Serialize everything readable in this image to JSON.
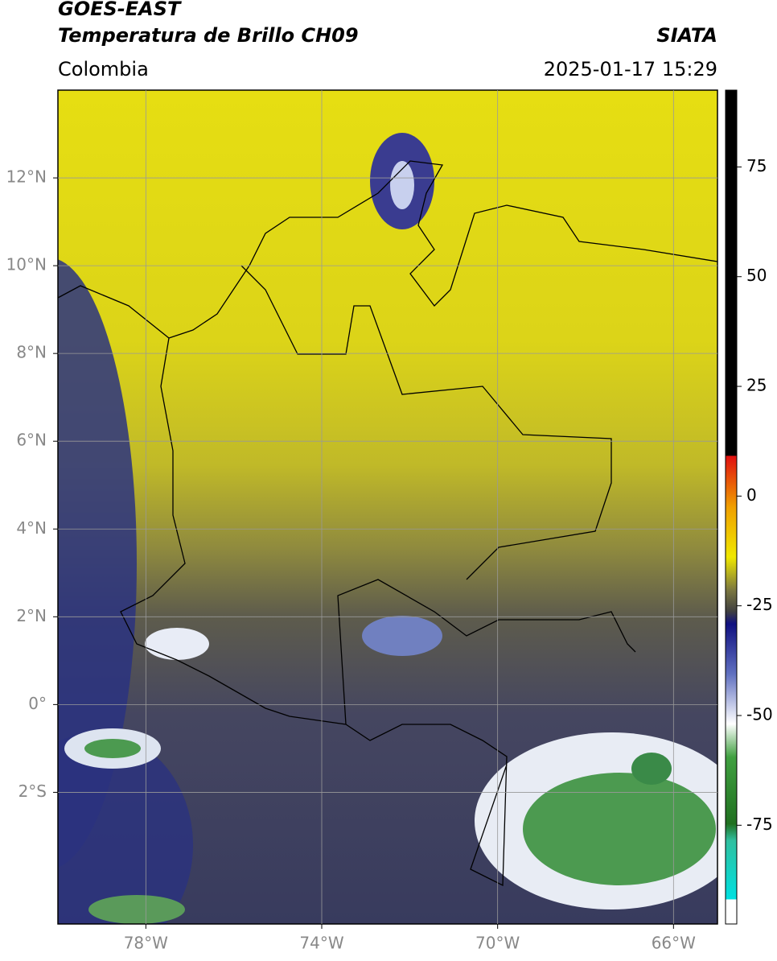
{
  "header": {
    "satellite": "GOES-EAST",
    "product": "Temperatura de Brillo CH09",
    "agency": "SIATA",
    "region": "Colombia",
    "datetime": "2025-01-17 15:29"
  },
  "map": {
    "xlim": [
      -80,
      -65
    ],
    "ylim": [
      -5,
      14
    ],
    "xticks": [
      {
        "value": -78,
        "label": "78°W"
      },
      {
        "value": -74,
        "label": "74°W"
      },
      {
        "value": -70,
        "label": "70°W"
      },
      {
        "value": -66,
        "label": "66°W"
      }
    ],
    "yticks": [
      {
        "value": -2,
        "label": "2°S"
      },
      {
        "value": 0,
        "label": "0°"
      },
      {
        "value": 2,
        "label": "2°N"
      },
      {
        "value": 4,
        "label": "4°N"
      },
      {
        "value": 6,
        "label": "6°N"
      },
      {
        "value": 8,
        "label": "8°N"
      },
      {
        "value": 10,
        "label": "10°N"
      },
      {
        "value": 12,
        "label": "12°N"
      }
    ],
    "grid": true
  },
  "colorbar": {
    "lim": [
      -97.5,
      92.5
    ],
    "ticks": [
      -75,
      -50,
      -25,
      0,
      25,
      50,
      75
    ]
  }
}
